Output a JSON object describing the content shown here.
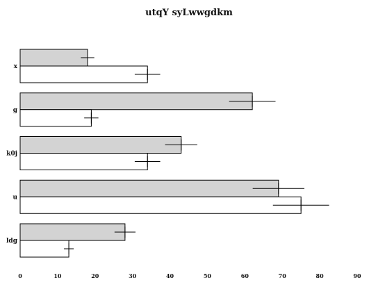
{
  "chart_data": {
    "type": "bar",
    "orientation": "horizontal",
    "title": "utqY syLwwgdkm",
    "xlabel": "",
    "ylabel": "",
    "categories": [
      "x",
      "g",
      "k0j",
      "u",
      "ldg"
    ],
    "xlim": [
      0,
      90
    ],
    "xticks": [
      0,
      10,
      20,
      30,
      40,
      50,
      60,
      70,
      80,
      90
    ],
    "grid": false,
    "series": [
      {
        "color": "#d3d3d3",
        "values": [
          18,
          62,
          43,
          69,
          28
        ],
        "errors": [
          1.8,
          6.2,
          4.3,
          6.9,
          2.8
        ]
      },
      {
        "color": "#ffffff",
        "values": [
          34,
          19,
          34,
          75,
          13
        ],
        "errors": [
          3.4,
          1.9,
          3.4,
          7.5,
          1.3
        ]
      }
    ]
  }
}
